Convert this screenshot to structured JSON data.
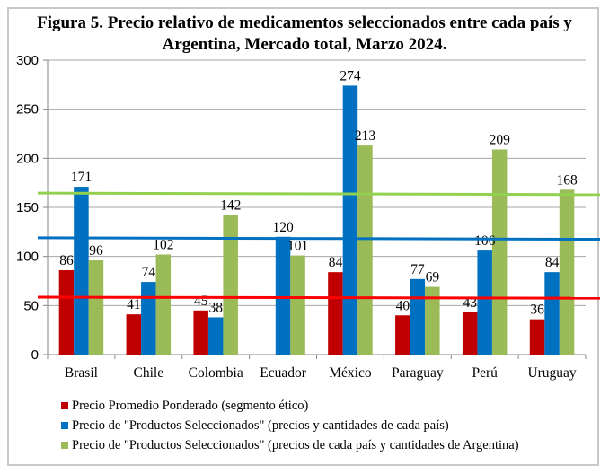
{
  "chart_data": {
    "type": "bar",
    "title": "Figura 5. Precio relativo de medicamentos seleccionados entre cada país y Argentina, Mercado total, Marzo 2024.",
    "title_lines": [
      "Figura 5. Precio relativo de medicamentos seleccionados entre cada país y",
      "Argentina, Mercado total, Marzo 2024."
    ],
    "xlabel": "",
    "ylabel": "",
    "ylim": [
      0,
      300
    ],
    "yticks": [
      0,
      50,
      100,
      150,
      200,
      250,
      300
    ],
    "grid": true,
    "legend_position": "bottom",
    "categories": [
      "Brasil",
      "Chile",
      "Colombia",
      "Ecuador",
      "México",
      "Paraguay",
      "Perú",
      "Uruguay"
    ],
    "series": [
      {
        "name": "Precio Promedio Ponderado (segmento ético)",
        "color": "#c00000",
        "values": [
          86,
          41,
          45,
          null,
          84,
          40,
          43,
          36
        ]
      },
      {
        "name": "Precio de \"Productos Seleccionados\" (precios y cantidades de cada país)",
        "color": "#0070c0",
        "values": [
          171,
          74,
          38,
          120,
          274,
          77,
          106,
          84
        ]
      },
      {
        "name": "Precio de \"Productos Seleccionados\" (precios de cada país y cantidades de Argentina)",
        "color": "#9bbb59",
        "values": [
          96,
          102,
          142,
          101,
          213,
          69,
          209,
          168
        ]
      }
    ],
    "reference_lines": [
      {
        "series": "Precio Promedio Ponderado (segmento ético)",
        "color": "#ff0000",
        "value_start": 58.5,
        "value_end": 57.5
      },
      {
        "series": "Precio de \"Productos Seleccionados\" (precios y cantidades de cada país)",
        "color": "#0070c0",
        "value_start": 119,
        "value_end": 117.5
      },
      {
        "series": "Precio de \"Productos Seleccionados\" (precios de cada país y cantidades de Argentina)",
        "color": "#92d050",
        "value_start": 164.5,
        "value_end": 163
      }
    ]
  }
}
